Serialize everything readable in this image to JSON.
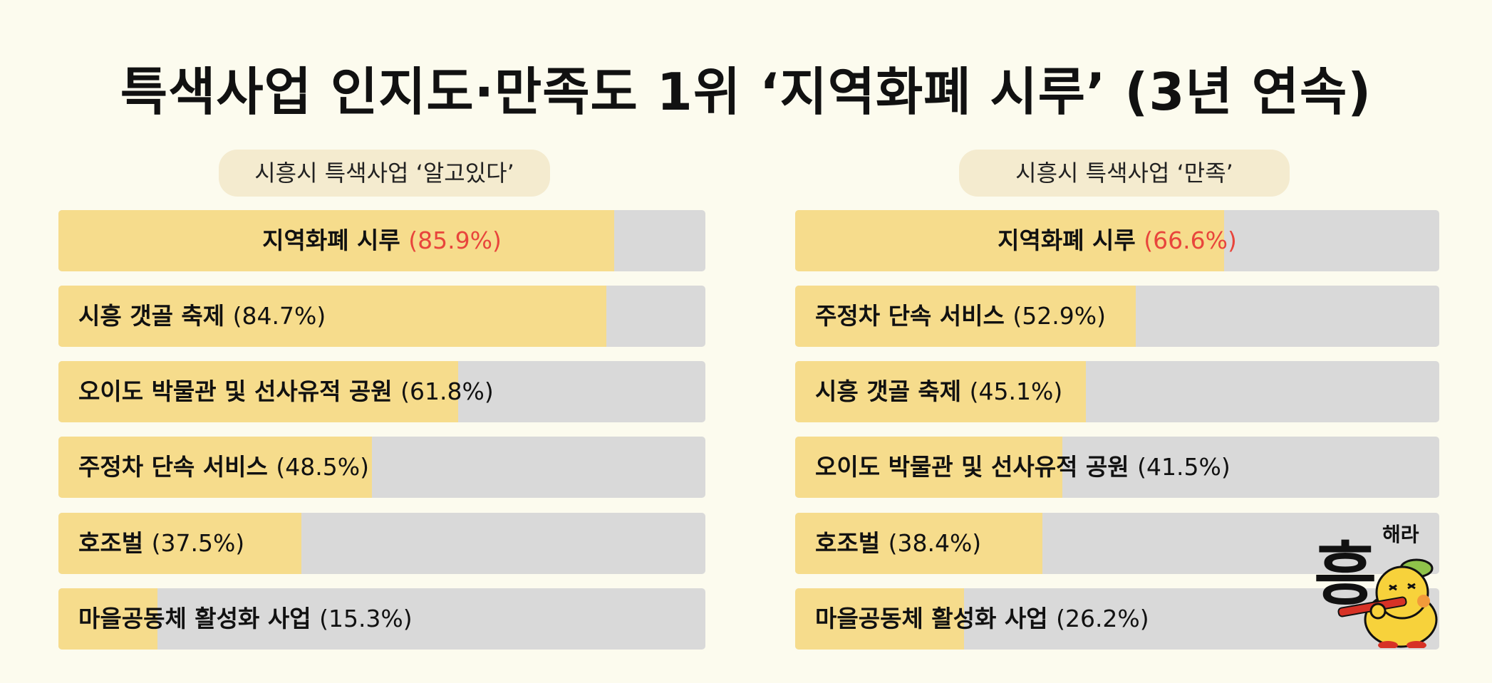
{
  "title": "특색사업 인지도·만족도 1위 ‘지역화폐 시루’ (3년 연속)",
  "chart_data": [
    {
      "type": "bar",
      "orientation": "horizontal",
      "title": "시흥시 특색사업 ‘알고있다’",
      "unit": "%",
      "xlim": [
        0,
        100
      ],
      "categories": [
        "지역화폐 시루",
        "시흥 갯골 축제",
        "오이도 박물관 및 선사유적 공원",
        "주정차 단속 서비스",
        "호조벌",
        "마을공동체 활성화 사업"
      ],
      "values": [
        85.9,
        84.7,
        61.8,
        48.5,
        37.5,
        15.3
      ],
      "labels": [
        {
          "name": "지역화폐 시루",
          "value_text": "(85.9%)",
          "highlight": true
        },
        {
          "name": "시흥 갯골 축제",
          "value_text": "(84.7%)",
          "highlight": false
        },
        {
          "name": "오이도 박물관 및 선사유적 공원",
          "value_text": "(61.8%)",
          "highlight": false
        },
        {
          "name": "주정차 단속 서비스",
          "value_text": "(48.5%)",
          "highlight": false
        },
        {
          "name": "호조벌",
          "value_text": "(37.5%)",
          "highlight": false
        },
        {
          "name": "마을공동체 활성화 사업",
          "value_text": "(15.3%)",
          "highlight": false
        }
      ]
    },
    {
      "type": "bar",
      "orientation": "horizontal",
      "title": "시흥시 특색사업 ‘만족’",
      "unit": "%",
      "xlim": [
        0,
        100
      ],
      "categories": [
        "지역화폐 시루",
        "주정차 단속 서비스",
        "시흥 갯골 축제",
        "오이도 박물관 및 선사유적 공원",
        "호조벌",
        "마을공동체 활성화 사업"
      ],
      "values": [
        66.6,
        52.9,
        45.1,
        41.5,
        38.4,
        26.2
      ],
      "labels": [
        {
          "name": "지역화폐 시루",
          "value_text": "(66.6%)",
          "highlight": true
        },
        {
          "name": "주정차 단속 서비스",
          "value_text": "(52.9%)",
          "highlight": false
        },
        {
          "name": "시흥 갯골 축제",
          "value_text": "(45.1%)",
          "highlight": false
        },
        {
          "name": "오이도 박물관 및 선사유적 공원",
          "value_text": "(41.5%)",
          "highlight": false
        },
        {
          "name": "호조벌",
          "value_text": "(38.4%)",
          "highlight": false
        },
        {
          "name": "마을공동체 활성화 사업",
          "value_text": "(26.2%)",
          "highlight": false
        }
      ]
    }
  ],
  "colors": {
    "background": "#fcfbee",
    "bar_fill": "#f6dc8c",
    "bar_track": "#d9d9d9",
    "highlight_text": "#e8453c",
    "subtitle_bg": "#f4ebcf"
  },
  "mascot": {
    "icon": "heung-haera-mascot-icon",
    "logo_char": "흥",
    "logo_text": "해라"
  }
}
